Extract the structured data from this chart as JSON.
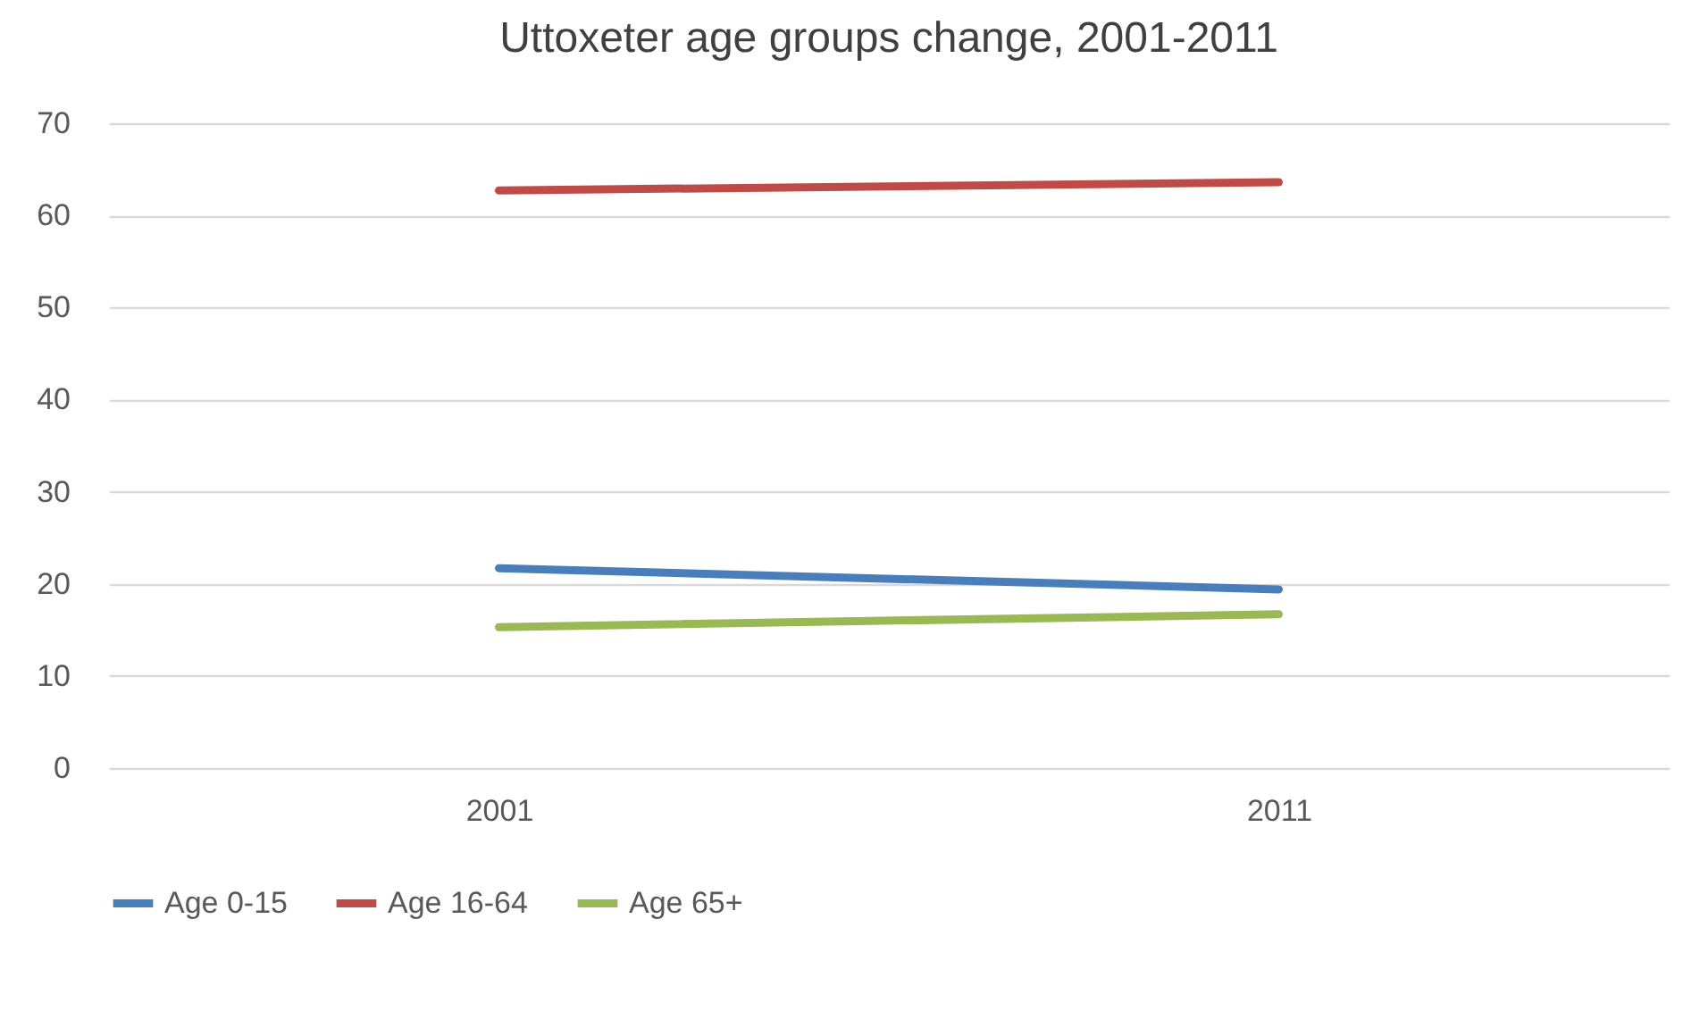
{
  "chart_data": {
    "type": "line",
    "title": "Uttoxeter age groups change, 2001-2011",
    "categories": [
      "2001",
      "2011"
    ],
    "series": [
      {
        "name": "Age 0-15",
        "color": "#4a7ebb",
        "values": [
          21.7,
          19.4
        ]
      },
      {
        "name": "Age 16-64",
        "color": "#be4b48",
        "values": [
          62.7,
          63.6
        ]
      },
      {
        "name": "Age 65+",
        "color": "#98b954",
        "values": [
          15.3,
          16.7
        ]
      }
    ],
    "ylim": [
      0,
      70
    ],
    "yticks": [
      0,
      10,
      20,
      30,
      40,
      50,
      60,
      70
    ],
    "grid": "y",
    "legend": "bottom",
    "marker": "none",
    "line_style": "solid"
  }
}
